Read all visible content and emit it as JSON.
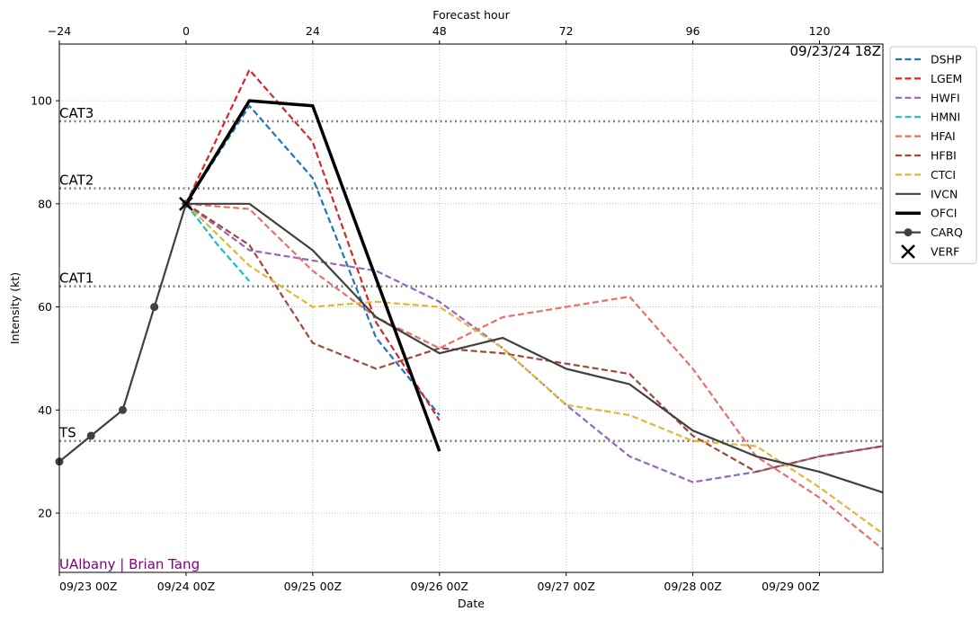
{
  "chart_data": {
    "type": "line",
    "top_axis_label": "Forecast hour",
    "top_ticks": [
      "−24",
      "0",
      "24",
      "48",
      "72",
      "96",
      "120"
    ],
    "top_tick_values": [
      -24,
      0,
      24,
      48,
      72,
      96,
      120
    ],
    "xlabel": "Date",
    "ylabel": "Intensity (kt)",
    "x_unit": "forecast hour",
    "xlim": [
      -24,
      132
    ],
    "ylim": [
      8.5,
      111
    ],
    "x_ticks": [
      {
        "x": -24,
        "label": "09/23 00Z"
      },
      {
        "x": 0,
        "label": "09/24 00Z"
      },
      {
        "x": 24,
        "label": "09/25 00Z"
      },
      {
        "x": 48,
        "label": "09/26 00Z"
      },
      {
        "x": 72,
        "label": "09/27 00Z"
      },
      {
        "x": 96,
        "label": "09/28 00Z"
      },
      {
        "x": 120,
        "label": "09/29 00Z"
      }
    ],
    "y_ticks": [
      20,
      40,
      60,
      80,
      100
    ],
    "grid": true,
    "legend_position": "outside-right",
    "init_label": "09/23/24 18Z",
    "credit": "UAlbany | Brian Tang",
    "credit_color": "#800080",
    "thresholds": [
      {
        "label": "TS",
        "value": 34
      },
      {
        "label": "CAT1",
        "value": 64
      },
      {
        "label": "CAT2",
        "value": 83
      },
      {
        "label": "CAT3",
        "value": 96
      }
    ],
    "series": [
      {
        "name": "DSHP",
        "color": "#1f77b4",
        "style": "dashed",
        "x": [
          0,
          12,
          24,
          36,
          48
        ],
        "y": [
          80,
          99,
          85,
          54,
          39
        ]
      },
      {
        "name": "LGEM",
        "color": "#d62728",
        "style": "dashed",
        "x": [
          0,
          12,
          24,
          36,
          48
        ],
        "y": [
          80,
          106,
          92,
          57,
          38
        ]
      },
      {
        "name": "HWFI",
        "color": "#9467bd",
        "style": "dashed",
        "x": [
          0,
          12,
          24,
          36,
          48,
          60,
          72,
          84,
          96,
          108,
          120,
          132
        ],
        "y": [
          80,
          71,
          69,
          67,
          61,
          52,
          41,
          31,
          26,
          28,
          31,
          33
        ]
      },
      {
        "name": "HMNI",
        "color": "#17becf",
        "style": "dashed",
        "x": [
          0,
          6,
          12
        ],
        "y": [
          80,
          72,
          65
        ]
      },
      {
        "name": "HFAI",
        "color": "#e8706b",
        "style": "dashed",
        "x": [
          0,
          12,
          24,
          36,
          48,
          60,
          72,
          84,
          96,
          108,
          120,
          132
        ],
        "y": [
          80,
          79,
          67,
          58,
          52,
          58,
          60,
          62,
          48,
          31,
          23,
          13
        ]
      },
      {
        "name": "HFBI",
        "color": "#a0483c",
        "style": "dashed",
        "x": [
          0,
          12,
          24,
          36,
          48,
          60,
          72,
          84,
          96,
          108,
          120,
          132
        ],
        "y": [
          80,
          72,
          53,
          48,
          52,
          51,
          49,
          47,
          35,
          28,
          31,
          33
        ]
      },
      {
        "name": "CTCI",
        "color": "#e3b633",
        "style": "dashed",
        "x": [
          0,
          12,
          24,
          36,
          48,
          60,
          72,
          84,
          96,
          108,
          120,
          132
        ],
        "y": [
          80,
          68,
          60,
          61,
          60,
          52,
          41,
          39,
          34,
          33,
          25,
          16
        ]
      },
      {
        "name": "IVCN",
        "color": "#404040",
        "style": "solid",
        "x": [
          0,
          12,
          24,
          36,
          48,
          60,
          72,
          84,
          96,
          108,
          120,
          132
        ],
        "y": [
          80,
          80,
          71,
          58,
          51,
          54,
          48,
          45,
          36,
          31,
          28,
          24
        ]
      },
      {
        "name": "OFCI",
        "color": "#000000",
        "style": "solid-thick",
        "x": [
          0,
          12,
          24,
          48
        ],
        "y": [
          80,
          100,
          99,
          32
        ]
      },
      {
        "name": "CARQ",
        "color": "#404040",
        "style": "solid-marker",
        "x": [
          -24,
          -18,
          -12,
          -6,
          0
        ],
        "y": [
          30,
          35,
          40,
          60,
          80
        ]
      },
      {
        "name": "VERF",
        "color": "#000000",
        "style": "x-marker",
        "x": [
          0
        ],
        "y": [
          80
        ]
      }
    ]
  }
}
